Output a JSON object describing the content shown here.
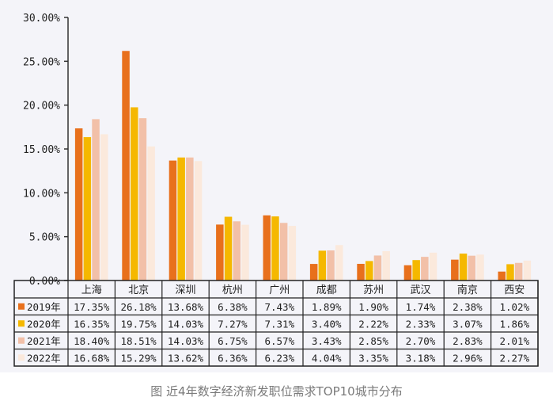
{
  "caption": "图 近4年数字经济新发职位需求TOP10城市分布",
  "chart_data": {
    "type": "bar",
    "categories": [
      "上海",
      "北京",
      "深圳",
      "杭州",
      "广州",
      "成都",
      "苏州",
      "武汉",
      "南京",
      "西安"
    ],
    "series": [
      {
        "name": "2019年",
        "color": "#e8701c",
        "values": [
          17.35,
          26.18,
          13.68,
          6.38,
          7.43,
          1.89,
          1.9,
          1.74,
          2.38,
          1.02
        ],
        "labels": [
          "17.35%",
          "26.18%",
          "13.68%",
          "6.38%",
          "7.43%",
          "1.89%",
          "1.90%",
          "1.74%",
          "2.38%",
          "1.02%"
        ]
      },
      {
        "name": "2020年",
        "color": "#f5b800",
        "values": [
          16.35,
          19.75,
          14.03,
          7.27,
          7.31,
          3.4,
          2.22,
          2.33,
          3.07,
          1.86
        ],
        "labels": [
          "16.35%",
          "19.75%",
          "14.03%",
          "7.27%",
          "7.31%",
          "3.40%",
          "2.22%",
          "2.33%",
          "3.07%",
          "1.86%"
        ]
      },
      {
        "name": "2021年",
        "color": "#f2c0a8",
        "values": [
          18.4,
          18.51,
          14.03,
          6.75,
          6.57,
          3.43,
          2.85,
          2.7,
          2.83,
          2.01
        ],
        "labels": [
          "18.40%",
          "18.51%",
          "14.03%",
          "6.75%",
          "6.57%",
          "3.43%",
          "2.85%",
          "2.70%",
          "2.83%",
          "2.01%"
        ]
      },
      {
        "name": "2022年",
        "color": "#fbe9dc",
        "values": [
          16.68,
          15.29,
          13.62,
          6.36,
          6.23,
          4.04,
          3.35,
          3.18,
          2.96,
          2.27
        ],
        "labels": [
          "16.68%",
          "15.29%",
          "13.62%",
          "6.36%",
          "6.23%",
          "4.04%",
          "3.35%",
          "3.18%",
          "2.96%",
          "2.27%"
        ]
      }
    ],
    "yticks": [
      "0.00%",
      "5.00%",
      "10.00%",
      "15.00%",
      "20.00%",
      "25.00%",
      "30.00%"
    ],
    "ylim": [
      0,
      30
    ],
    "grid": false,
    "legend": "data table"
  }
}
